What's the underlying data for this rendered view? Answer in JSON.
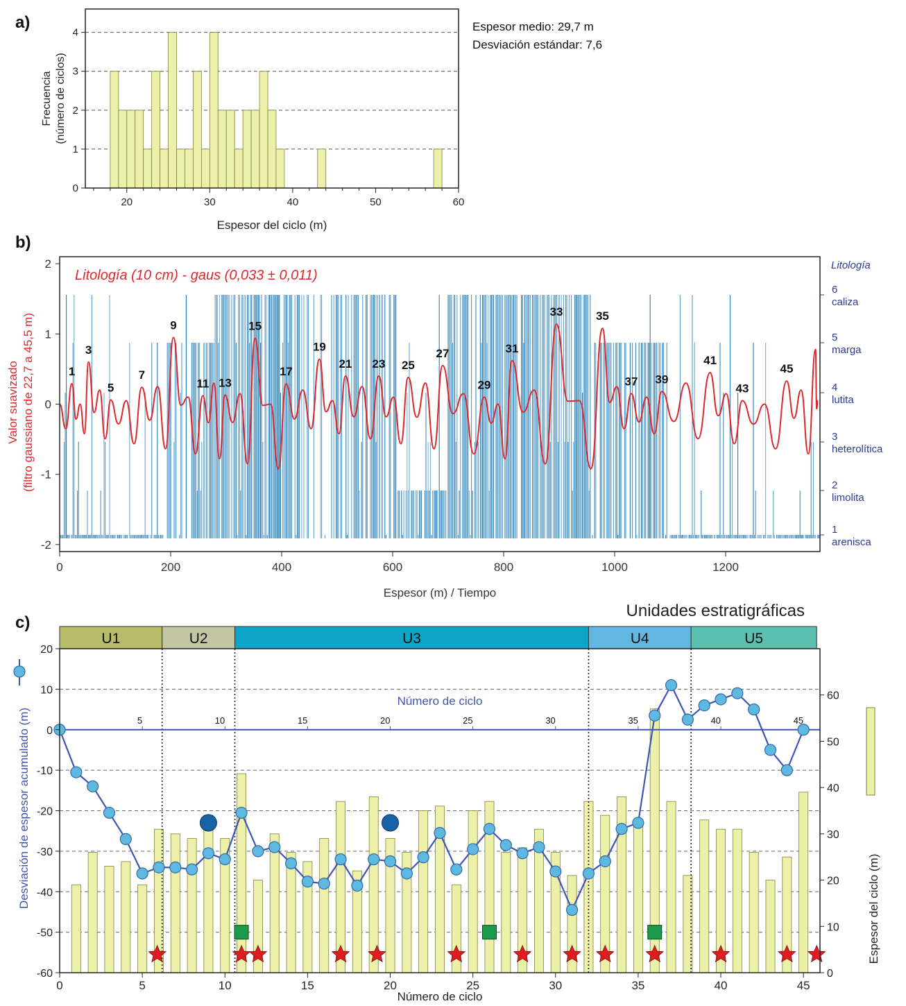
{
  "chart_data": [
    {
      "panel": "a)",
      "type": "bar",
      "xlabel": "Espesor del ciclo (m)",
      "ylabel": "Frecuencia\n(número de ciclos)",
      "xlim": [
        15,
        60
      ],
      "ylim": [
        0,
        4.6
      ],
      "xticks": [
        20,
        30,
        40,
        50,
        60
      ],
      "yticks": [
        0,
        1,
        2,
        3,
        4
      ],
      "grid": "horizontal dashed",
      "bar_color": "#edf0a8",
      "bin_width": 1,
      "bins": [
        {
          "x": 18.5,
          "v": 3
        },
        {
          "x": 19.5,
          "v": 2
        },
        {
          "x": 20.5,
          "v": 2
        },
        {
          "x": 21.5,
          "v": 2
        },
        {
          "x": 22.5,
          "v": 1
        },
        {
          "x": 23.5,
          "v": 3
        },
        {
          "x": 24.5,
          "v": 1
        },
        {
          "x": 25.5,
          "v": 4
        },
        {
          "x": 26.5,
          "v": 1
        },
        {
          "x": 27.5,
          "v": 1
        },
        {
          "x": 28.5,
          "v": 3
        },
        {
          "x": 29.5,
          "v": 1
        },
        {
          "x": 30.5,
          "v": 4
        },
        {
          "x": 31.5,
          "v": 2
        },
        {
          "x": 32.5,
          "v": 2
        },
        {
          "x": 33.5,
          "v": 1
        },
        {
          "x": 34.5,
          "v": 2
        },
        {
          "x": 35.5,
          "v": 2
        },
        {
          "x": 36.5,
          "v": 3
        },
        {
          "x": 37.5,
          "v": 2
        },
        {
          "x": 38.5,
          "v": 1
        },
        {
          "x": 43.5,
          "v": 1
        },
        {
          "x": 57.5,
          "v": 1
        }
      ],
      "annotations": [
        "Espesor medio: 29,7 m",
        "Desviación estándar: 7,6"
      ]
    },
    {
      "panel": "b)",
      "type": "line",
      "title": "Litología (10 cm) - gaus (0,033 ± 0,011)",
      "xlabel": "Espesor (m) / Tiempo",
      "ylabel": "Valor suavizado\n(filtro gaussiano de 22,7 a 45,5 m)",
      "xlim": [
        0,
        1370
      ],
      "ylim": [
        -2.1,
        2.1
      ],
      "xticks": [
        0,
        200,
        400,
        600,
        800,
        1000,
        1200
      ],
      "yticks": [
        -2,
        -1,
        0,
        1,
        2
      ],
      "right_axis_title": "Litología",
      "right_axis_labels": [
        {
          "n": "6",
          "name": "caliza"
        },
        {
          "n": "5",
          "name": "marga"
        },
        {
          "n": "4",
          "name": "lutita"
        },
        {
          "n": "3",
          "name": "heterolítica"
        },
        {
          "n": "2",
          "name": "limolita"
        },
        {
          "n": "1",
          "name": "arenisca"
        }
      ],
      "series": [
        {
          "type": "line",
          "color": "#e0262b",
          "peaks": [
            [
              22,
              0.29
            ],
            [
              52,
              0.6
            ],
            [
              92,
              0.06
            ],
            [
              148,
              0.24
            ],
            [
              205,
              0.95
            ],
            [
              258,
              0.12
            ],
            [
              298,
              0.13
            ],
            [
              352,
              0.94
            ],
            [
              408,
              0.29
            ],
            [
              468,
              0.64
            ],
            [
              515,
              0.4
            ],
            [
              575,
              0.4
            ],
            [
              628,
              0.38
            ],
            [
              690,
              0.55
            ],
            [
              765,
              0.1
            ],
            [
              815,
              0.62
            ],
            [
              895,
              1.14
            ],
            [
              978,
              1.08
            ],
            [
              1030,
              0.15
            ],
            [
              1085,
              0.18
            ],
            [
              1172,
              0.45
            ],
            [
              1230,
              0.05
            ],
            [
              1310,
              0.33
            ],
            [
              1362,
              0.78
            ]
          ]
        },
        {
          "type": "bars",
          "color": "#1979b3",
          "segments": [
            {
              "from": 0,
              "to": 190,
              "level": 1,
              "density": "high"
            },
            {
              "from": 190,
              "to": 280,
              "level": 5,
              "density": "mid"
            },
            {
              "from": 280,
              "to": 420,
              "level": 6,
              "density": "high"
            },
            {
              "from": 420,
              "to": 610,
              "level": 6,
              "density": "mid"
            },
            {
              "from": 610,
              "to": 700,
              "level": 2,
              "density": "high"
            },
            {
              "from": 700,
              "to": 960,
              "level": 6,
              "density": "high"
            },
            {
              "from": 960,
              "to": 1100,
              "level": 5,
              "density": "mid"
            },
            {
              "from": 1100,
              "to": 1370,
              "level": 1,
              "density": "high"
            }
          ]
        }
      ],
      "cycle_labels": [
        1,
        3,
        5,
        7,
        9,
        11,
        13,
        15,
        17,
        19,
        21,
        23,
        25,
        27,
        29,
        31,
        33,
        35,
        37,
        39,
        41,
        43,
        45
      ]
    },
    {
      "panel": "c)",
      "type": "line",
      "title": "Unidades estratigráficas",
      "xlabel": "Número de ciclo",
      "inner_xlabel": "Número de ciclo",
      "ylabel": "Desviación de espesor acumulado (m)",
      "y2label": "Espesor del ciclo (m)",
      "xlim": [
        0,
        46
      ],
      "ylim": [
        -60,
        20
      ],
      "y2lim": [
        0,
        70
      ],
      "xticks": [
        0,
        5,
        10,
        15,
        20,
        25,
        30,
        35,
        40,
        45
      ],
      "inner_xticks": [
        5,
        10,
        15,
        20,
        25,
        30,
        35,
        40,
        45
      ],
      "yticks": [
        20,
        10,
        0,
        -10,
        -20,
        -30,
        -40,
        -50,
        -60
      ],
      "y2ticks": [
        0,
        10,
        20,
        30,
        40,
        50,
        60
      ],
      "units": [
        {
          "name": "U1",
          "from": 0,
          "to": 6.2,
          "color": "#b8bb6a"
        },
        {
          "name": "U2",
          "from": 6.2,
          "to": 10.6,
          "color": "#c3c6a4"
        },
        {
          "name": "U3",
          "from": 10.6,
          "to": 32,
          "color": "#0ea5c9"
        },
        {
          "name": "U4",
          "from": 32,
          "to": 38.2,
          "color": "#62b7e0"
        },
        {
          "name": "U5",
          "from": 38.2,
          "to": 45.8,
          "color": "#5dbfb0"
        }
      ],
      "series": [
        {
          "type": "line",
          "color": "#3f55b4",
          "x": [
            0,
            1,
            2,
            3,
            4,
            5,
            6,
            7,
            8,
            9,
            10,
            11,
            12,
            13,
            14,
            15,
            16,
            17,
            18,
            19,
            20,
            21,
            22,
            23,
            24,
            25,
            26,
            27,
            28,
            29,
            30,
            31,
            32,
            33,
            34,
            35,
            36,
            37,
            38,
            39,
            40,
            41,
            42,
            43,
            44,
            45
          ],
          "y": [
            0,
            -10.5,
            -14,
            -20.5,
            -27,
            -35.5,
            -34,
            -34,
            -34.5,
            -30.5,
            -32,
            -20.5,
            -30,
            -29,
            -33,
            -37.5,
            -38,
            -32,
            -38.5,
            -32,
            -32.5,
            -35.5,
            -31.5,
            -25.5,
            -34.5,
            -29.5,
            -24.5,
            -28.5,
            -30.5,
            -29,
            -35,
            -44.5,
            -35.5,
            -32.5,
            -24.5,
            -23,
            3.5,
            11,
            2.5,
            6,
            7.5,
            9,
            5,
            -5,
            -10,
            0
          ]
        },
        {
          "type": "bar",
          "color": "#edf0a8",
          "x": [
            1,
            2,
            3,
            4,
            5,
            6,
            7,
            8,
            9,
            10,
            11,
            12,
            13,
            14,
            15,
            16,
            17,
            18,
            19,
            20,
            21,
            22,
            23,
            24,
            25,
            26,
            27,
            28,
            29,
            30,
            31,
            32,
            33,
            34,
            35,
            36,
            37,
            38,
            39,
            40,
            41,
            42,
            43,
            44,
            45
          ],
          "values": [
            19,
            26,
            23,
            24,
            19,
            31,
            30,
            29,
            34,
            29,
            43,
            20,
            30,
            26,
            24,
            29,
            37,
            22,
            38,
            29,
            26,
            35,
            36,
            19,
            35,
            37,
            26,
            27,
            31,
            26,
            21,
            37,
            34,
            38,
            32,
            57,
            37,
            21,
            33,
            31,
            31,
            26,
            20,
            25,
            39
          ]
        },
        {
          "type": "scatter",
          "marker": "star",
          "color": "#e01b22",
          "x": [
            5.9,
            11,
            12,
            17,
            19.2,
            24,
            28,
            31,
            33,
            36,
            40,
            44,
            45.8
          ],
          "y": [
            -55.5,
            -55.5,
            -55.5,
            -55.5,
            -55.5,
            -55.5,
            -55.5,
            -55.5,
            -55.5,
            -55.5,
            -55.5,
            -55.5,
            -55.5
          ]
        },
        {
          "type": "scatter",
          "marker": "square",
          "color": "#1a9a4a",
          "x": [
            11,
            26,
            36
          ],
          "y": [
            -50,
            -50,
            -50
          ]
        },
        {
          "type": "scatter",
          "marker": "circle",
          "color": "#1862a8",
          "x": [
            9,
            20
          ],
          "y": [
            -23,
            -23
          ]
        }
      ]
    }
  ]
}
